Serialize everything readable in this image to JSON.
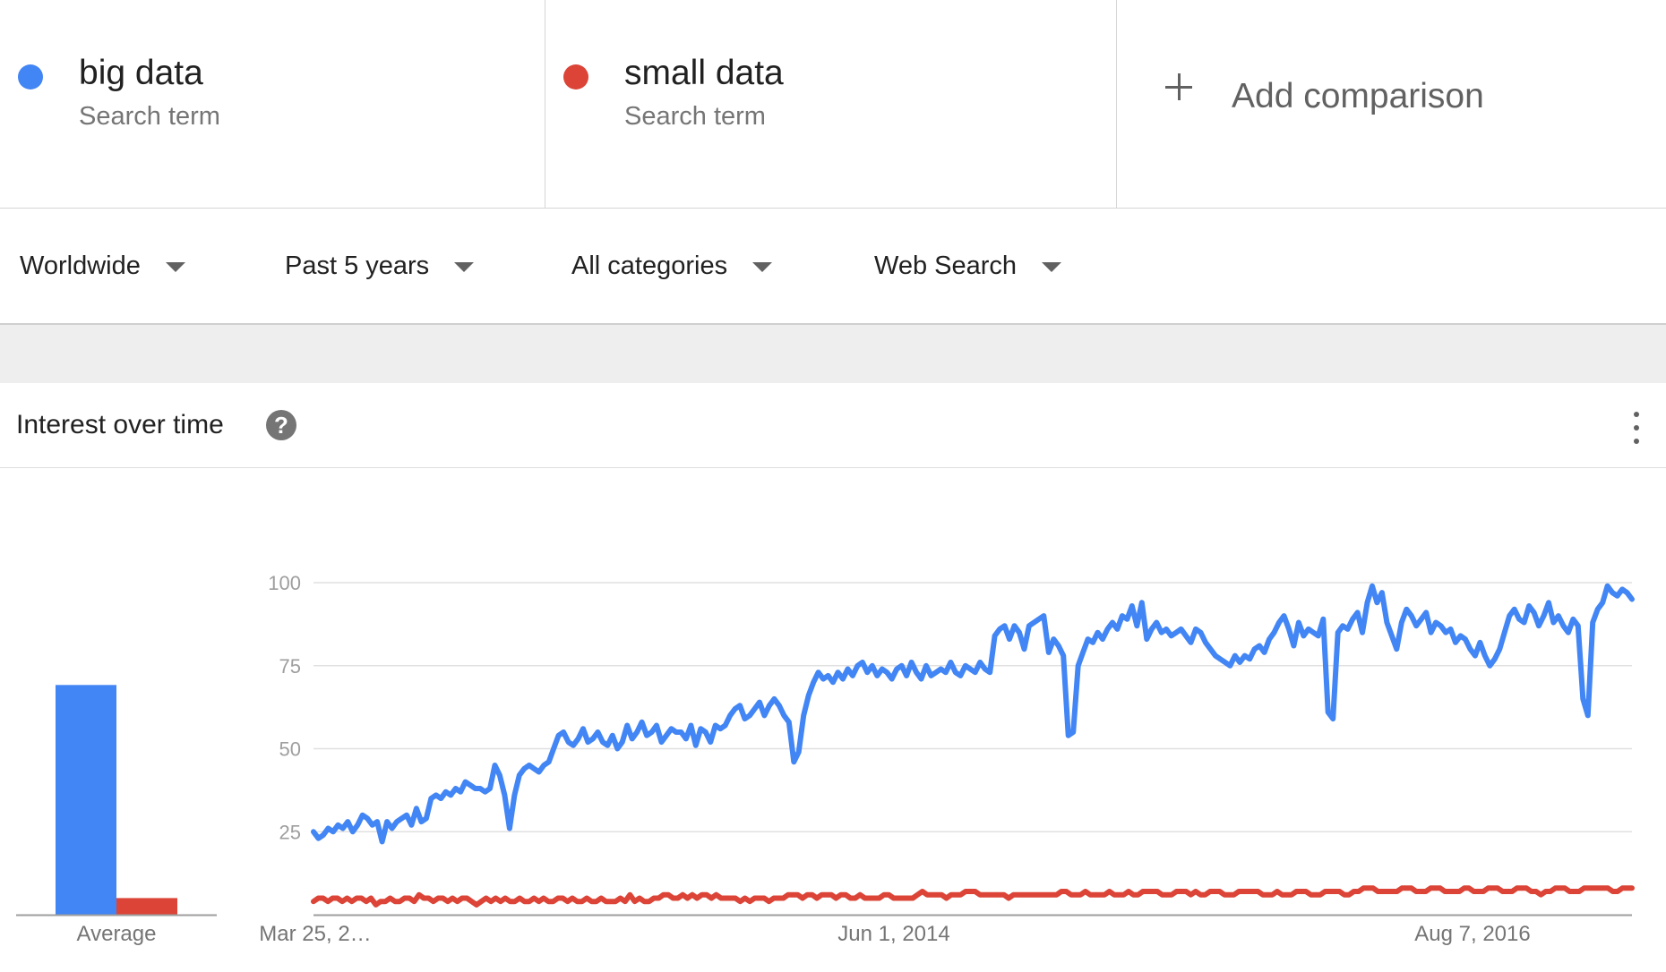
{
  "terms": [
    {
      "name": "big data",
      "subtitle": "Search term",
      "color": "#4285f4"
    },
    {
      "name": "small data",
      "subtitle": "Search term",
      "color": "#db4437"
    }
  ],
  "add_comparison": {
    "label": "Add comparison",
    "icon": "plus-icon"
  },
  "filters": {
    "region": "Worldwide",
    "time": "Past 5 years",
    "category": "All categories",
    "search_type": "Web Search"
  },
  "card": {
    "title": "Interest over time",
    "help_icon": "help-icon",
    "menu_icon": "more-vert-icon"
  },
  "chart_data": [
    {
      "type": "bar",
      "categories": [
        "big data",
        "small data"
      ],
      "values": [
        69,
        5
      ],
      "xlabel": "Average",
      "ylim": [
        0,
        100
      ],
      "colors": [
        "#4285f4",
        "#db4437"
      ]
    },
    {
      "type": "line",
      "x_tick_labels": [
        "Mar 25, 2…",
        "Jun 1, 2014",
        "Aug 7, 2016"
      ],
      "y_ticks": [
        25,
        50,
        75,
        100
      ],
      "ylim": [
        0,
        100
      ],
      "grid": true,
      "series": [
        {
          "name": "big data",
          "color": "#4285f4",
          "values": [
            25,
            23,
            24,
            26,
            25,
            27,
            26,
            28,
            25,
            27,
            30,
            29,
            27,
            28,
            22,
            28,
            26,
            28,
            29,
            30,
            27,
            32,
            28,
            29,
            35,
            36,
            35,
            37,
            36,
            38,
            37,
            40,
            39,
            38,
            38,
            37,
            38,
            45,
            42,
            36,
            26,
            36,
            42,
            44,
            45,
            44,
            43,
            45,
            46,
            50,
            54,
            55,
            52,
            51,
            53,
            56,
            52,
            53,
            55,
            52,
            51,
            54,
            50,
            52,
            57,
            53,
            55,
            58,
            54,
            55,
            57,
            52,
            54,
            56,
            55,
            55,
            53,
            57,
            51,
            56,
            55,
            52,
            57,
            56,
            57,
            60,
            62,
            63,
            59,
            60,
            62,
            64,
            60,
            63,
            65,
            63,
            60,
            58,
            46,
            49,
            60,
            66,
            70,
            73,
            71,
            72,
            70,
            73,
            71,
            74,
            72,
            75,
            76,
            73,
            75,
            72,
            74,
            73,
            71,
            74,
            75,
            72,
            76,
            73,
            71,
            75,
            72,
            73,
            74,
            73,
            76,
            73,
            72,
            75,
            74,
            73,
            76,
            74,
            73,
            84,
            86,
            87,
            83,
            87,
            85,
            80,
            87,
            88,
            89,
            90,
            79,
            83,
            81,
            78,
            54,
            55,
            75,
            79,
            83,
            82,
            85,
            83,
            86,
            88,
            86,
            90,
            89,
            93,
            87,
            94,
            83,
            86,
            88,
            85,
            86,
            84,
            85,
            86,
            84,
            82,
            86,
            85,
            82,
            80,
            78,
            77,
            76,
            75,
            78,
            76,
            78,
            77,
            80,
            81,
            79,
            83,
            85,
            88,
            90,
            86,
            81,
            88,
            84,
            86,
            85,
            84,
            89,
            61,
            59,
            85,
            87,
            86,
            89,
            91,
            85,
            94,
            99,
            94,
            97,
            88,
            84,
            80,
            88,
            92,
            90,
            87,
            89,
            91,
            85,
            88,
            87,
            85,
            86,
            82,
            84,
            83,
            80,
            78,
            82,
            78,
            75,
            77,
            80,
            85,
            90,
            92,
            89,
            88,
            93,
            91,
            87,
            90,
            94,
            88,
            90,
            87,
            85,
            89,
            87,
            65,
            60,
            88,
            92,
            94,
            99,
            97,
            96,
            98,
            97,
            95
          ]
        },
        {
          "name": "small data",
          "color": "#db4437",
          "values": [
            4,
            5,
            5,
            4,
            5,
            5,
            4,
            5,
            4,
            5,
            5,
            4,
            5,
            3,
            4,
            4,
            5,
            4,
            4,
            5,
            5,
            4,
            6,
            5,
            5,
            4,
            5,
            5,
            4,
            5,
            4,
            5,
            5,
            4,
            3,
            4,
            5,
            4,
            5,
            4,
            5,
            4,
            4,
            5,
            4,
            4,
            5,
            4,
            5,
            4,
            4,
            5,
            5,
            4,
            5,
            4,
            4,
            5,
            4,
            4,
            5,
            4,
            4,
            4,
            5,
            4,
            6,
            4,
            5,
            4,
            4,
            5,
            5,
            6,
            6,
            5,
            5,
            6,
            5,
            6,
            5,
            6,
            6,
            5,
            6,
            5,
            5,
            5,
            5,
            4,
            5,
            4,
            5,
            5,
            5,
            4,
            5,
            5,
            5,
            6,
            6,
            6,
            5,
            6,
            6,
            5,
            6,
            6,
            6,
            5,
            6,
            6,
            5,
            5,
            6,
            5,
            5,
            5,
            5,
            6,
            6,
            5,
            5,
            5,
            5,
            5,
            6,
            7,
            6,
            6,
            6,
            6,
            5,
            6,
            6,
            6,
            7,
            7,
            7,
            6,
            6,
            6,
            6,
            6,
            6,
            5,
            6,
            6,
            6,
            6,
            6,
            6,
            6,
            6,
            6,
            6,
            7,
            7,
            6,
            6,
            6,
            7,
            6,
            6,
            6,
            6,
            7,
            6,
            6,
            6,
            7,
            6,
            6,
            7,
            7,
            7,
            7,
            6,
            6,
            6,
            7,
            7,
            7,
            6,
            7,
            6,
            6,
            7,
            7,
            7,
            6,
            6,
            6,
            7,
            7,
            7,
            7,
            7,
            6,
            6,
            6,
            7,
            6,
            6,
            6,
            7,
            7,
            7,
            6,
            6,
            6,
            7,
            7,
            7,
            7,
            6,
            6,
            7,
            7,
            8,
            8,
            8,
            7,
            7,
            7,
            7,
            7,
            8,
            8,
            8,
            7,
            7,
            7,
            8,
            8,
            8,
            7,
            7,
            7,
            7,
            8,
            8,
            7,
            7,
            7,
            8,
            8,
            8,
            7,
            7,
            7,
            8,
            8,
            8,
            7,
            7,
            6,
            7,
            7,
            8,
            8,
            8,
            7,
            7,
            7,
            8,
            8,
            8,
            8,
            8,
            8,
            7,
            7,
            8,
            8,
            8
          ]
        }
      ]
    }
  ]
}
